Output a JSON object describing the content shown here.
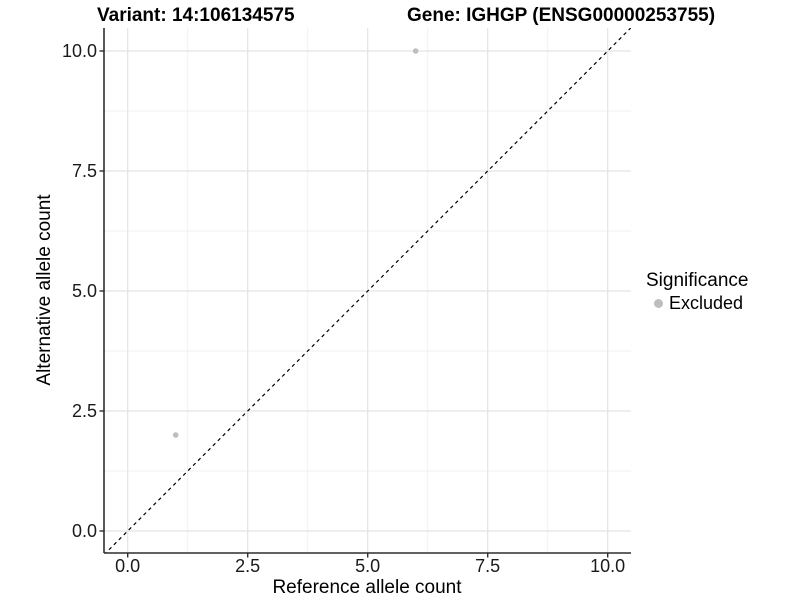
{
  "chart_data": {
    "type": "scatter",
    "title_left": "Variant: 14:106134575",
    "title_right": "Gene: IGHGP (ENSG00000253755)",
    "xlabel": "Reference allele count",
    "ylabel": "Alternative allele count",
    "xlim": [
      -0.5,
      10.5
    ],
    "ylim": [
      -0.5,
      10.5
    ],
    "grid": true,
    "x_ticks": {
      "values": [
        0,
        2.5,
        5,
        7.5,
        10
      ],
      "labels": [
        "0.0",
        "2.5",
        "5.0",
        "7.5",
        "10.0"
      ]
    },
    "y_ticks": {
      "values": [
        0,
        2.5,
        5,
        7.5,
        10
      ],
      "labels": [
        "0.0",
        "2.5",
        "5.0",
        "7.5",
        "10.0"
      ]
    },
    "minor_tick_values": [
      1.25,
      3.75,
      6.25,
      8.75
    ],
    "reference_line": {
      "kind": "identity y=x",
      "style": "dashed",
      "color": "#000000"
    },
    "series": [
      {
        "name": "Excluded",
        "color": "#bebebe",
        "points": [
          {
            "x": 1,
            "y": 2
          },
          {
            "x": 6,
            "y": 10
          }
        ]
      }
    ],
    "legend": {
      "title": "Significance",
      "position": "right",
      "entries": [
        {
          "label": "Excluded",
          "color": "#bebebe"
        }
      ]
    },
    "colors": {
      "major_grid": "#e4e4e4",
      "minor_grid": "#f0f0f0",
      "axis_line": "#2e2e2e",
      "tick_mark": "#2e2e2e"
    }
  }
}
